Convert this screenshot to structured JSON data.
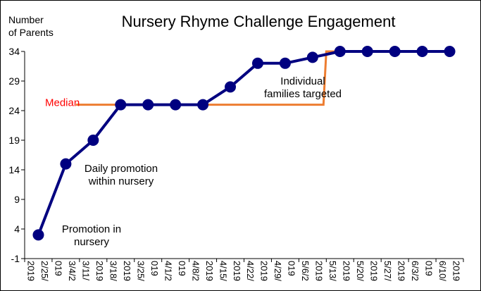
{
  "chart_data": {
    "type": "line",
    "title": "Nursery Rhyme Challenge Engagement",
    "ylabel": [
      "Number",
      "of Parents"
    ],
    "xlabel": "",
    "ylim": [
      -1,
      34
    ],
    "yticks": [
      "34",
      "29",
      "24",
      "19",
      "14",
      "9",
      "4",
      "-1"
    ],
    "ytick_values": [
      34,
      29,
      24,
      19,
      14,
      9,
      4,
      -1
    ],
    "categories": [
      "2019",
      "2/25/",
      "019",
      "3/4/2",
      "3/11/",
      "2019",
      "3/18/",
      "2019",
      "3/25/",
      "019",
      "4/1/2",
      "019",
      "4/8/2",
      "2019",
      "4/15/",
      "2019",
      "4/22/",
      "2019",
      "4/29/",
      "019",
      "5/6/2",
      "2019",
      "5/13/",
      "2019",
      "5/20/",
      "2019",
      "5/27/",
      "2019",
      "6/3/2",
      "019",
      "6/10/",
      "2019"
    ],
    "series": [
      {
        "name": "",
        "color": "#000080",
        "points": [
          {
            "x": "2/25/2019",
            "y": 3
          },
          {
            "x": "3/4/2019",
            "y": 15
          },
          {
            "x": "3/11/2019",
            "y": 19
          },
          {
            "x": "3/18/2019",
            "y": 25
          },
          {
            "x": "3/25/2019",
            "y": 25
          },
          {
            "x": "4/1/2019",
            "y": 25
          },
          {
            "x": "4/8/2019",
            "y": 25
          },
          {
            "x": "4/15/2019",
            "y": 28
          },
          {
            "x": "4/22/2019",
            "y": 32
          },
          {
            "x": "4/29/2019",
            "y": 32
          },
          {
            "x": "5/6/2019",
            "y": 33
          },
          {
            "x": "5/13/2019",
            "y": 34
          },
          {
            "x": "5/20/2019",
            "y": 34
          },
          {
            "x": "5/27/2019",
            "y": 34
          },
          {
            "x": "6/3/2019",
            "y": 34
          },
          {
            "x": "6/10/2019",
            "y": 34
          }
        ]
      }
    ],
    "median": {
      "label": "Median",
      "color": "#ED7D31",
      "segments": [
        {
          "from": 2,
          "to": 11,
          "value": 25
        },
        {
          "from": 11,
          "to": 16,
          "value": 34
        }
      ]
    },
    "annotations": [
      {
        "lines": [
          "Promotion in",
          "nursery"
        ]
      },
      {
        "lines": [
          "Daily promotion",
          "within nursery"
        ]
      },
      {
        "lines": [
          "Individual",
          "families targeted"
        ]
      }
    ],
    "grid": false,
    "legend": "none"
  }
}
